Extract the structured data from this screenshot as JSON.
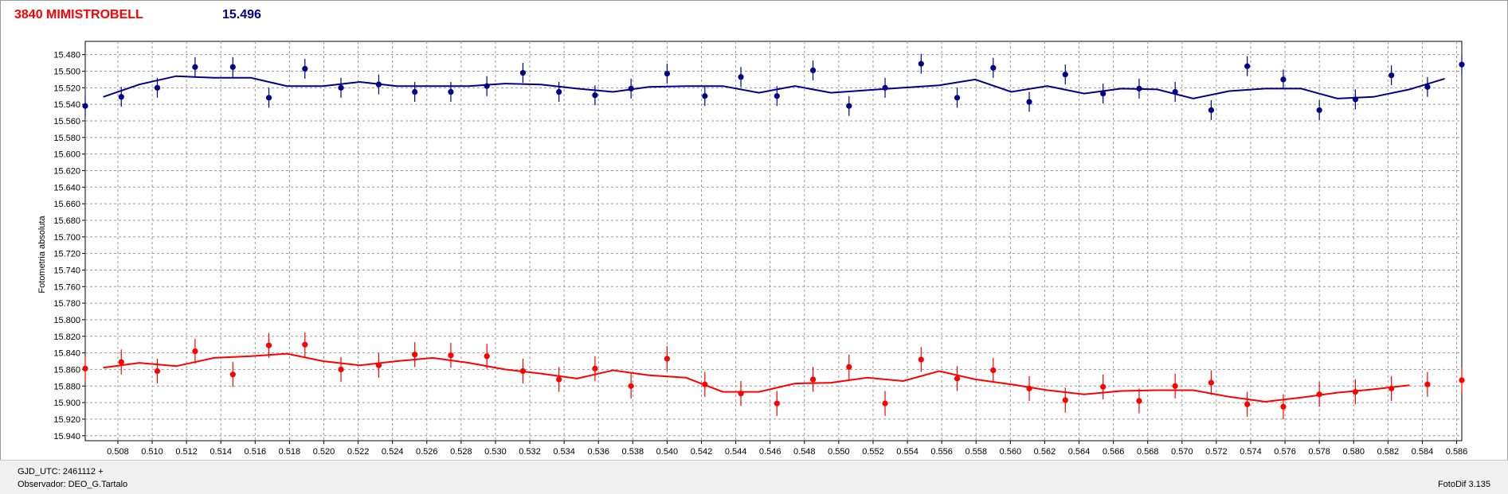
{
  "header": {
    "title": "3840 MIMISTROBELL",
    "magnitude": "15.496"
  },
  "footer": {
    "gjd": "GJD_UTC: 2461112 +",
    "observer": "Observador: DEO_G.Tartalo",
    "software": "FotoDif 3.135"
  },
  "chart_data": {
    "type": "scatter",
    "title": "",
    "xlabel": "",
    "ylabel": "Fotometria absoluta",
    "xlim": [
      0.5061,
      0.5863
    ],
    "ylim": [
      15.946,
      15.464
    ],
    "y_inverted": true,
    "x_ticks": [
      "0.508",
      "0.510",
      "0.512",
      "0.514",
      "0.516",
      "0.518",
      "0.520",
      "0.522",
      "0.524",
      "0.526",
      "0.528",
      "0.530",
      "0.532",
      "0.534",
      "0.536",
      "0.538",
      "0.540",
      "0.542",
      "0.544",
      "0.546",
      "0.548",
      "0.550",
      "0.552",
      "0.554",
      "0.556",
      "0.558",
      "0.560",
      "0.562",
      "0.564",
      "0.566",
      "0.568",
      "0.570",
      "0.572",
      "0.574",
      "0.576",
      "0.578",
      "0.580",
      "0.582",
      "0.584",
      "0.586"
    ],
    "y_ticks": [
      "15.480",
      "15.500",
      "15.520",
      "15.540",
      "15.560",
      "15.580",
      "15.600",
      "15.620",
      "15.640",
      "15.660",
      "15.680",
      "15.700",
      "15.720",
      "15.740",
      "15.760",
      "15.780",
      "15.800",
      "15.820",
      "15.840",
      "15.860",
      "15.880",
      "15.900",
      "15.920",
      "15.940"
    ],
    "grid": true,
    "series": [
      {
        "color": "#00008b",
        "error": 0.012,
        "x": [
          0.5061,
          0.5082,
          0.5103,
          0.5125,
          0.5147,
          0.5168,
          0.5189,
          0.521,
          0.5232,
          0.5253,
          0.5274,
          0.5295,
          0.5316,
          0.5337,
          0.5358,
          0.5379,
          0.54,
          0.5422,
          0.5443,
          0.5464,
          0.5485,
          0.5506,
          0.5527,
          0.5548,
          0.5569,
          0.559,
          0.5611,
          0.5632,
          0.5654,
          0.5675,
          0.5696,
          0.5717,
          0.5738,
          0.5759,
          0.578,
          0.5801,
          0.5822,
          0.5843,
          0.5863
        ],
        "y": [
          15.542,
          15.531,
          15.52,
          15.495,
          15.495,
          15.532,
          15.497,
          15.52,
          15.516,
          15.525,
          15.525,
          15.518,
          15.502,
          15.525,
          15.529,
          15.521,
          15.503,
          15.53,
          15.507,
          15.53,
          15.499,
          15.542,
          15.52,
          15.491,
          15.532,
          15.496,
          15.537,
          15.504,
          15.527,
          15.521,
          15.525,
          15.547,
          15.494,
          15.51,
          15.547,
          15.534,
          15.505,
          15.519,
          15.492
        ],
        "fit": [
          15.531,
          15.516,
          15.506,
          15.508,
          15.508,
          15.518,
          15.518,
          15.513,
          15.518,
          15.518,
          15.518,
          15.515,
          15.516,
          15.521,
          15.525,
          15.519,
          15.518,
          15.518,
          15.526,
          15.518,
          15.526,
          15.523,
          15.52,
          15.517,
          15.51,
          15.525,
          15.518,
          15.527,
          15.521,
          15.522,
          15.533,
          15.524,
          15.521,
          15.521,
          15.533,
          15.531,
          15.522,
          15.509
        ]
      },
      {
        "color": "#ff0000",
        "error": 0.015,
        "x": [
          0.5061,
          0.5082,
          0.5103,
          0.5125,
          0.5147,
          0.5168,
          0.5189,
          0.521,
          0.5232,
          0.5253,
          0.5274,
          0.5295,
          0.5316,
          0.5337,
          0.5358,
          0.5379,
          0.54,
          0.5422,
          0.5443,
          0.5464,
          0.5485,
          0.5506,
          0.5527,
          0.5548,
          0.5569,
          0.559,
          0.5611,
          0.5632,
          0.5654,
          0.5675,
          0.5696,
          0.5717,
          0.5738,
          0.5759,
          0.578,
          0.5801,
          0.5822,
          0.5843,
          0.5863
        ],
        "y": [
          15.859,
          15.851,
          15.862,
          15.838,
          15.866,
          15.831,
          15.83,
          15.86,
          15.855,
          15.842,
          15.843,
          15.844,
          15.862,
          15.872,
          15.859,
          15.88,
          15.847,
          15.878,
          15.889,
          15.901,
          15.872,
          15.857,
          15.901,
          15.848,
          15.871,
          15.861,
          15.883,
          15.897,
          15.881,
          15.898,
          15.88,
          15.876,
          15.902,
          15.905,
          15.89,
          15.887,
          15.883,
          15.878,
          15.873
        ],
        "fit": [
          15.858,
          15.852,
          15.856,
          15.846,
          15.844,
          15.841,
          15.85,
          15.855,
          15.85,
          15.846,
          15.852,
          15.86,
          15.865,
          15.871,
          15.861,
          15.867,
          15.87,
          15.887,
          15.887,
          15.877,
          15.876,
          15.87,
          15.874,
          15.862,
          15.872,
          15.878,
          15.885,
          15.89,
          15.886,
          15.885,
          15.885,
          15.893,
          15.899,
          15.894,
          15.888,
          15.884,
          15.879
        ]
      }
    ]
  }
}
